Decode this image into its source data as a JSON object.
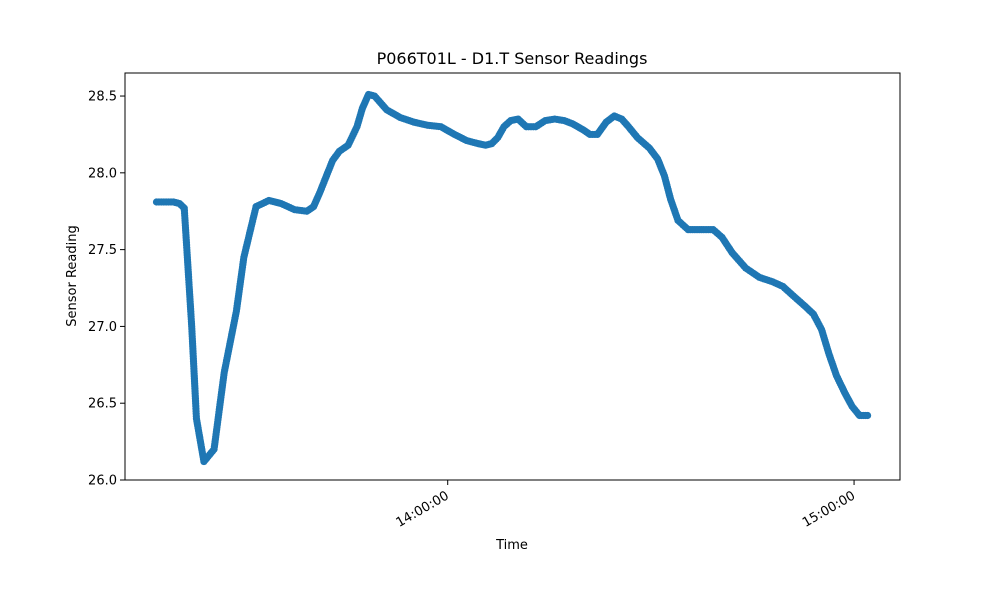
{
  "chart_data": {
    "type": "scatter",
    "title": "P066T01L - D1.T Sensor Readings",
    "xlabel": "Time",
    "ylabel": "Sensor Reading",
    "ylim": [
      26.0,
      28.65
    ],
    "xlim": [
      "13:12:21",
      "15:06:47"
    ],
    "x_ticks": [
      "14:00:00",
      "15:00:00"
    ],
    "y_ticks": [
      "26.0",
      "26.5",
      "27.0",
      "27.5",
      "28.0",
      "28.5"
    ],
    "grid": false,
    "marker_color": "#1f77b4",
    "series": [
      {
        "x": [
          "13:17:00",
          "13:19:30",
          "13:20:24",
          "13:21:06",
          "13:22:12",
          "13:22:54",
          "13:24:00",
          "13:25:30",
          "13:27:00",
          "13:28:48",
          "13:29:54",
          "13:31:42",
          "13:33:36",
          "13:35:24",
          "13:37:24",
          "13:39:12",
          "13:40:12",
          "13:41:06",
          "13:42:00",
          "13:43:00",
          "13:44:00",
          "13:45:18",
          "13:46:36",
          "13:47:24",
          "13:48:18",
          "13:49:12",
          "13:51:00",
          "13:53:00",
          "13:55:00",
          "13:57:00",
          "13:59:00",
          "14:01:00",
          "14:02:48",
          "14:04:30",
          "14:05:36",
          "14:06:30",
          "14:07:24",
          "14:08:18",
          "14:09:18",
          "14:10:24",
          "14:11:36",
          "14:13:00",
          "14:14:24",
          "14:15:48",
          "14:17:12",
          "14:18:24",
          "14:19:12",
          "14:20:00",
          "14:21:00",
          "14:22:06",
          "14:23:24",
          "14:24:36",
          "14:25:42",
          "14:26:42",
          "14:28:00",
          "14:29:48",
          "14:31:00",
          "14:32:00",
          "14:32:54",
          "14:34:00",
          "14:35:30",
          "14:37:48",
          "14:39:12",
          "14:40:30",
          "14:42:00",
          "14:44:00",
          "14:46:00",
          "14:48:00",
          "14:49:30",
          "14:51:00",
          "14:52:48",
          "14:54:00",
          "14:55:12",
          "14:56:18",
          "14:57:24",
          "14:58:36",
          "14:59:42",
          "15:00:48",
          "15:02:00"
        ],
        "y": [
          27.81,
          27.81,
          27.8,
          27.77,
          27.0,
          26.4,
          26.12,
          26.2,
          26.7,
          27.1,
          27.45,
          27.78,
          27.82,
          27.8,
          27.76,
          27.75,
          27.78,
          27.87,
          27.97,
          28.08,
          28.14,
          28.18,
          28.3,
          28.42,
          28.51,
          28.5,
          28.41,
          28.36,
          28.33,
          28.31,
          28.3,
          28.25,
          28.21,
          28.19,
          28.18,
          28.19,
          28.23,
          28.3,
          28.34,
          28.35,
          28.3,
          28.3,
          28.34,
          28.35,
          28.34,
          28.32,
          28.3,
          28.28,
          28.25,
          28.25,
          28.33,
          28.37,
          28.35,
          28.3,
          28.23,
          28.16,
          28.09,
          27.98,
          27.83,
          27.69,
          27.63,
          27.63,
          27.63,
          27.58,
          27.48,
          27.38,
          27.32,
          27.29,
          27.26,
          27.2,
          27.13,
          27.08,
          26.98,
          26.82,
          26.68,
          26.57,
          26.48,
          26.42,
          26.42
        ]
      }
    ]
  }
}
